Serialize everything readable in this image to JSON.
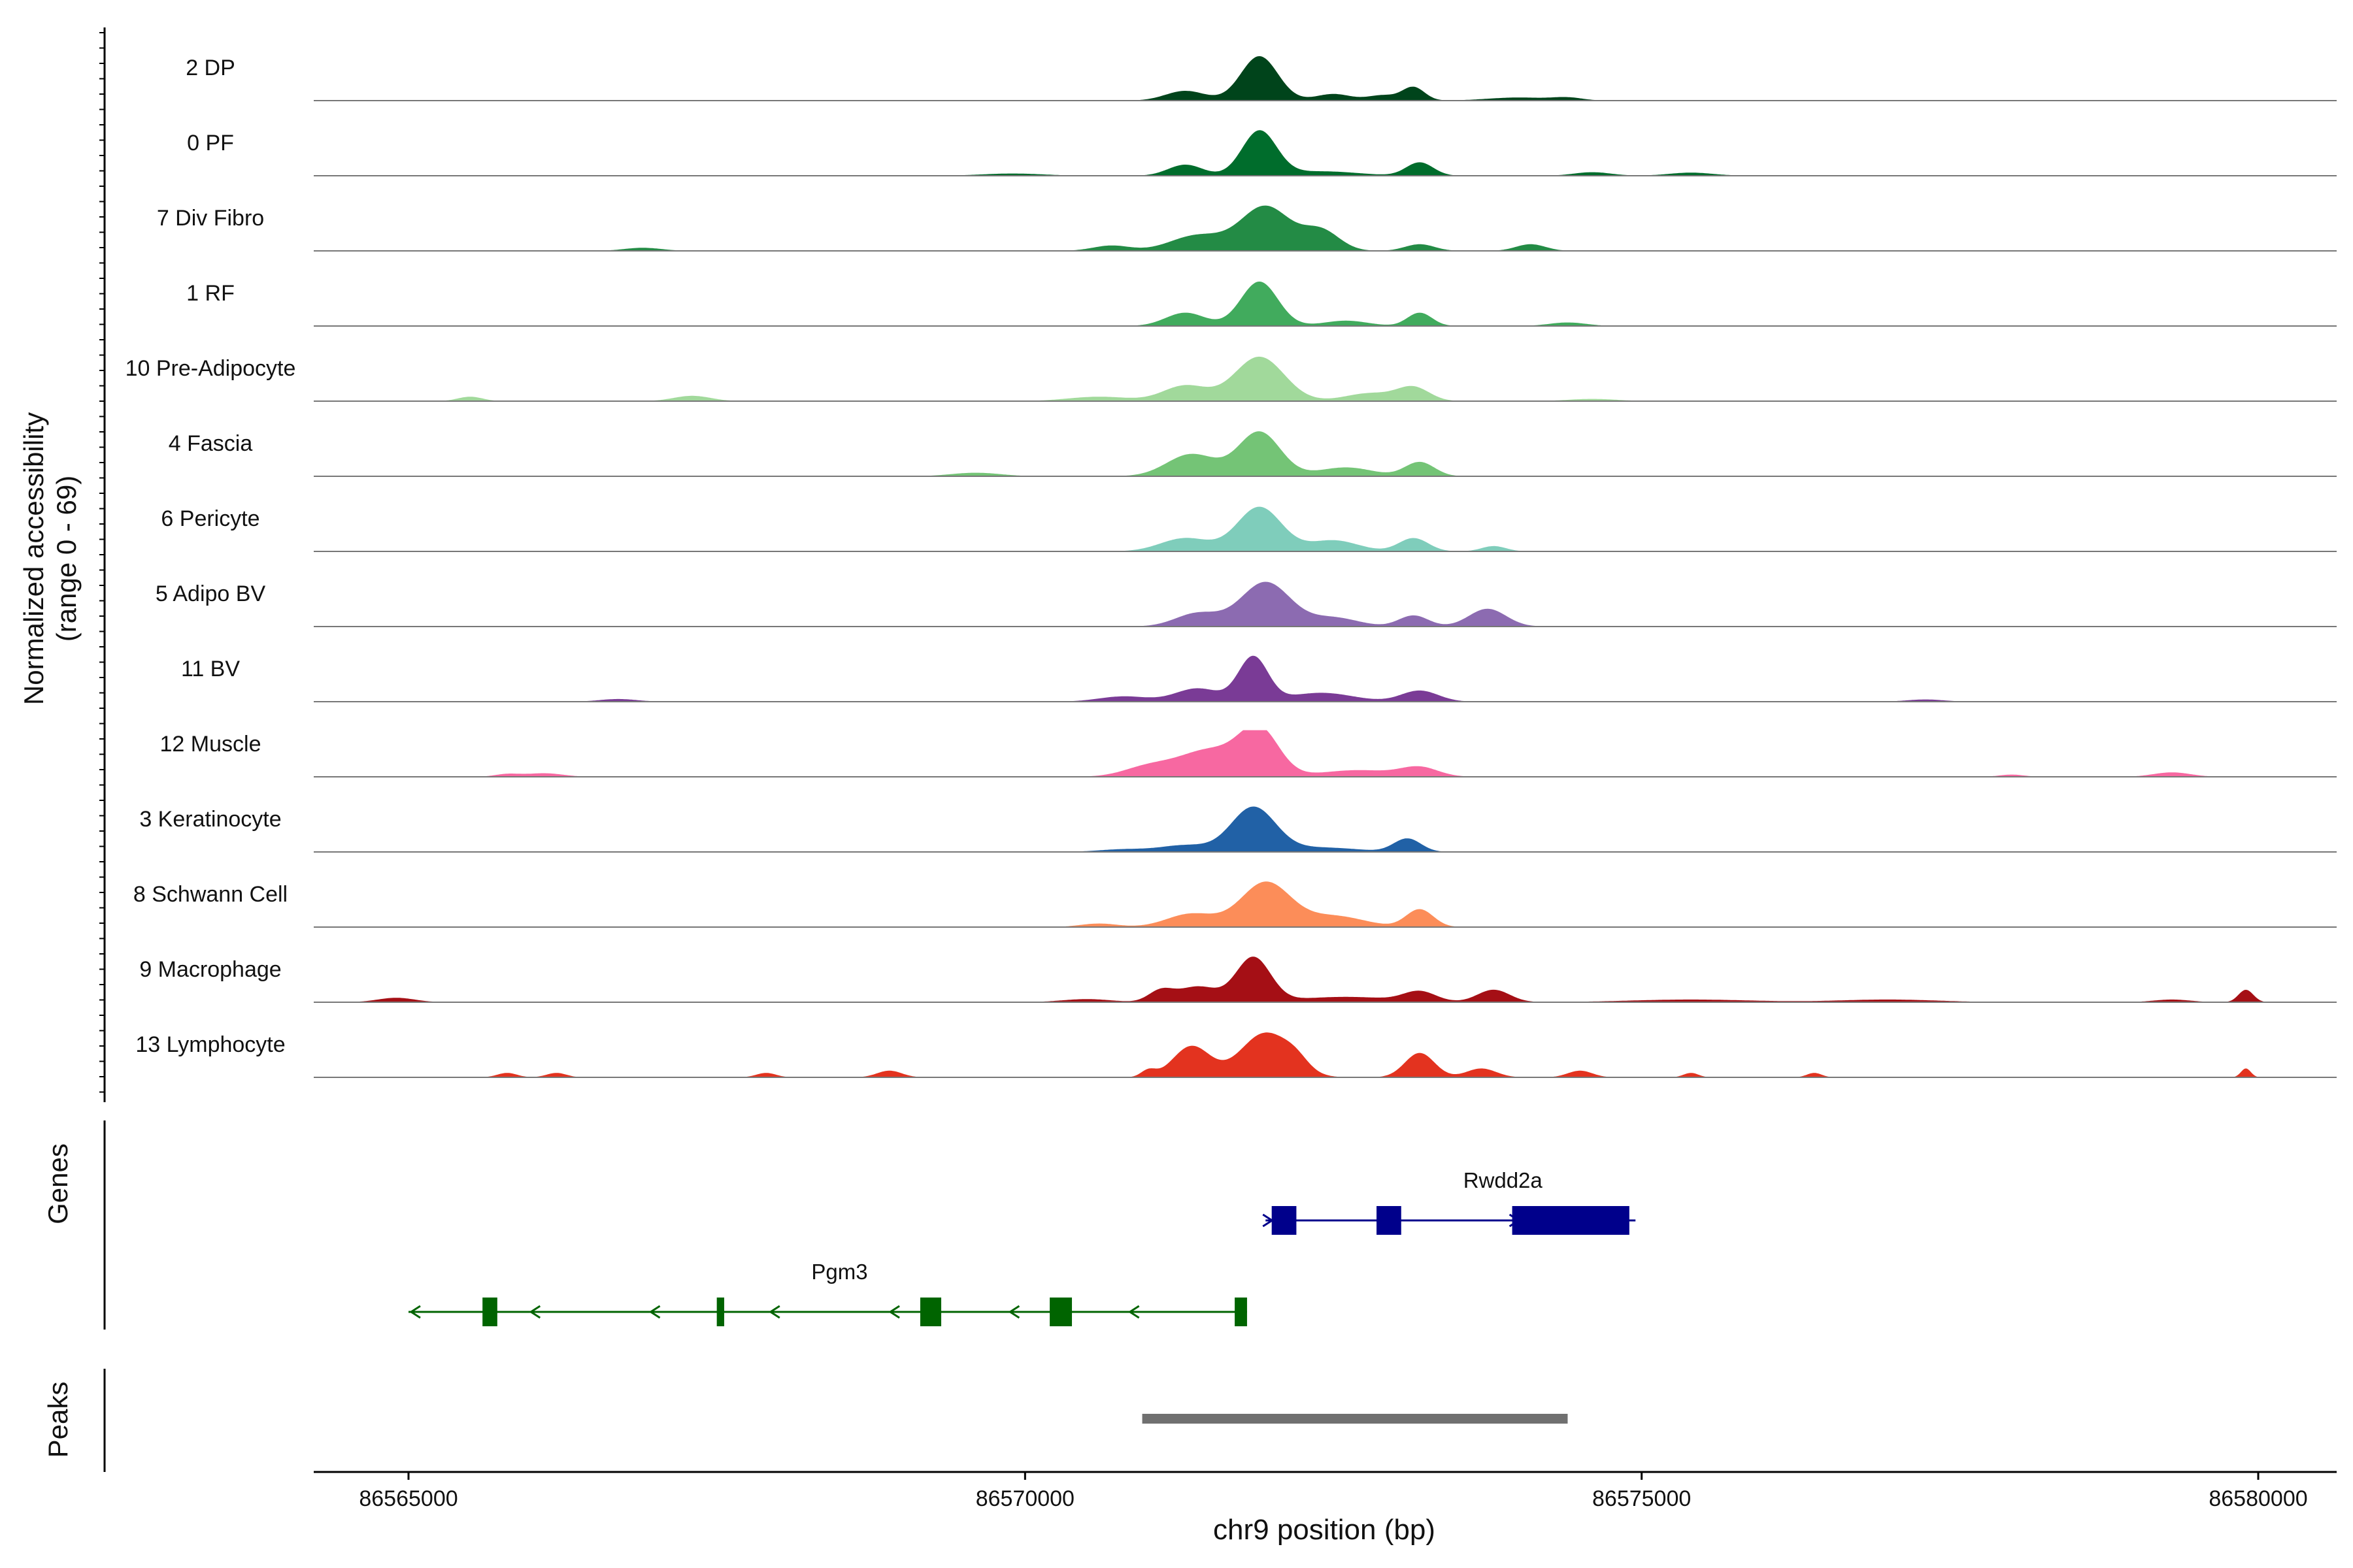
{
  "chart_data": {
    "type": "area",
    "title": "",
    "ylabel_line1": "Normalized accessibility",
    "ylabel_line2": "(range 0 - 69)",
    "y_range": [
      0,
      69
    ],
    "xlabel": "chr9 position (bp)",
    "x_range": [
      86563500,
      86580200
    ],
    "x_ticks": [
      86565000,
      86570000,
      86575000,
      86580000
    ],
    "x_tick_labels": [
      "86565000",
      "86570000",
      "86575000",
      "86580000"
    ],
    "tracks": [
      {
        "name": "2 DP",
        "color": "#00441b",
        "peaks": [
          [
            86571900,
            1.0,
            150
          ],
          [
            86571300,
            0.22,
            160
          ],
          [
            86572500,
            0.15,
            140
          ],
          [
            86573150,
            0.3,
            90
          ],
          [
            86572900,
            0.12,
            120
          ],
          [
            86574000,
            0.07,
            250
          ],
          [
            86574400,
            0.06,
            120
          ]
        ]
      },
      {
        "name": "0 PF",
        "color": "#006d2c",
        "peaks": [
          [
            86571900,
            1.0,
            140
          ],
          [
            86571300,
            0.25,
            140
          ],
          [
            86573200,
            0.3,
            110
          ],
          [
            86572400,
            0.1,
            300
          ],
          [
            86574600,
            0.08,
            150
          ],
          [
            86575400,
            0.07,
            180
          ],
          [
            86569900,
            0.05,
            250
          ]
        ]
      },
      {
        "name": "7 Div Fibro",
        "color": "#238b45",
        "peaks": [
          [
            86571950,
            1.0,
            200
          ],
          [
            86571400,
            0.35,
            220
          ],
          [
            86572400,
            0.45,
            150
          ],
          [
            86570700,
            0.12,
            150
          ],
          [
            86573200,
            0.15,
            120
          ],
          [
            86574100,
            0.15,
            120
          ],
          [
            86566900,
            0.07,
            150
          ]
        ]
      },
      {
        "name": "1 RF",
        "color": "#41ab5d",
        "peaks": [
          [
            86571900,
            1.0,
            150
          ],
          [
            86571300,
            0.3,
            160
          ],
          [
            86573200,
            0.3,
            100
          ],
          [
            86572600,
            0.12,
            180
          ],
          [
            86574400,
            0.08,
            150
          ]
        ]
      },
      {
        "name": "10 Pre-Adipocyte",
        "color": "#a1d99b",
        "peaks": [
          [
            86571900,
            1.0,
            200
          ],
          [
            86571300,
            0.35,
            180
          ],
          [
            86573150,
            0.3,
            130
          ],
          [
            86572800,
            0.18,
            200
          ],
          [
            86570600,
            0.1,
            250
          ],
          [
            86567300,
            0.12,
            150
          ],
          [
            86565500,
            0.1,
            100
          ],
          [
            86574600,
            0.05,
            200
          ]
        ]
      },
      {
        "name": "4 Fascia",
        "color": "#74c476",
        "peaks": [
          [
            86571900,
            1.0,
            170
          ],
          [
            86571350,
            0.5,
            200
          ],
          [
            86573200,
            0.32,
            120
          ],
          [
            86572600,
            0.2,
            220
          ],
          [
            86569600,
            0.08,
            200
          ]
        ]
      },
      {
        "name": "6 Pericyte",
        "color": "#7fcdbb",
        "peaks": [
          [
            86571900,
            1.0,
            180
          ],
          [
            86571300,
            0.3,
            200
          ],
          [
            86572500,
            0.25,
            200
          ],
          [
            86573150,
            0.3,
            120
          ],
          [
            86573800,
            0.12,
            100
          ]
        ]
      },
      {
        "name": "5 Adipo BV",
        "color": "#8c6bb1",
        "peaks": [
          [
            86571950,
            1.0,
            200
          ],
          [
            86571400,
            0.3,
            180
          ],
          [
            86572500,
            0.2,
            200
          ],
          [
            86573150,
            0.25,
            120
          ],
          [
            86573750,
            0.4,
            150
          ]
        ]
      },
      {
        "name": "11 BV",
        "color": "#7a3b96",
        "peaks": [
          [
            86571850,
            1.0,
            120
          ],
          [
            86571400,
            0.3,
            180
          ],
          [
            86572400,
            0.2,
            260
          ],
          [
            86573200,
            0.25,
            150
          ],
          [
            86570800,
            0.12,
            200
          ],
          [
            86566700,
            0.06,
            150
          ],
          [
            86577300,
            0.05,
            150
          ]
        ]
      },
      {
        "name": "12 Muscle",
        "color": "#f768a1",
        "peaks": [
          [
            86571900,
            1.0,
            160
          ],
          [
            86571500,
            0.6,
            250
          ],
          [
            86571000,
            0.22,
            200
          ],
          [
            86572700,
            0.15,
            300
          ],
          [
            86573200,
            0.2,
            150
          ],
          [
            86566100,
            0.08,
            150
          ],
          [
            86565800,
            0.06,
            100
          ],
          [
            86579300,
            0.1,
            150
          ],
          [
            86578000,
            0.05,
            100
          ]
        ]
      },
      {
        "name": "3 Keratinocyte",
        "color": "#2161a6",
        "peaks": [
          [
            86571850,
            1.0,
            180
          ],
          [
            86571300,
            0.15,
            200
          ],
          [
            86573100,
            0.3,
            110
          ],
          [
            86572400,
            0.1,
            300
          ],
          [
            86570800,
            0.06,
            200
          ]
        ]
      },
      {
        "name": "8 Schwann Cell",
        "color": "#fc8d59",
        "peaks": [
          [
            86571950,
            1.0,
            200
          ],
          [
            86571350,
            0.3,
            200
          ],
          [
            86572500,
            0.25,
            250
          ],
          [
            86573200,
            0.4,
            110
          ],
          [
            86570600,
            0.08,
            150
          ]
        ]
      },
      {
        "name": "9 Macrophage",
        "color": "#a50f15",
        "peaks": [
          [
            86571850,
            1.0,
            140
          ],
          [
            86571400,
            0.35,
            160
          ],
          [
            86571100,
            0.25,
            100
          ],
          [
            86573200,
            0.22,
            130
          ],
          [
            86573800,
            0.28,
            130
          ],
          [
            86572600,
            0.12,
            400
          ],
          [
            86579900,
            0.28,
            60
          ],
          [
            86564900,
            0.1,
            150
          ],
          [
            86570500,
            0.07,
            200
          ],
          [
            86575400,
            0.06,
            500
          ],
          [
            86577000,
            0.06,
            400
          ],
          [
            86579300,
            0.06,
            150
          ]
        ]
      },
      {
        "name": "13 Lymphocyte",
        "color": "#e3331f",
        "peaks": [
          [
            86571950,
            1.0,
            200
          ],
          [
            86571350,
            0.7,
            150
          ],
          [
            86573200,
            0.55,
            120
          ],
          [
            86572200,
            0.2,
            100
          ],
          [
            86573700,
            0.2,
            120
          ],
          [
            86574500,
            0.15,
            100
          ],
          [
            86571000,
            0.15,
            60
          ],
          [
            86568900,
            0.15,
            100
          ],
          [
            86566200,
            0.1,
            80
          ],
          [
            86565800,
            0.1,
            80
          ],
          [
            86567900,
            0.1,
            80
          ],
          [
            86579900,
            0.2,
            40
          ],
          [
            86575400,
            0.1,
            60
          ],
          [
            86576400,
            0.1,
            60
          ]
        ]
      }
    ],
    "genes": [
      {
        "name": "Rwdd2a",
        "color": "#00008b",
        "strand": "+",
        "start": 86571950,
        "end": 86574950,
        "exons": [
          [
            86572000,
            86572200
          ],
          [
            86572850,
            86573050
          ],
          [
            86573950,
            86574900
          ]
        ]
      },
      {
        "name": "Pgm3",
        "color": "#006400",
        "strand": "-",
        "start": 86565000,
        "end": 86571800,
        "exons": [
          [
            86565600,
            86565720
          ],
          [
            86567500,
            86567560
          ],
          [
            86569150,
            86569320
          ],
          [
            86570200,
            86570380
          ],
          [
            86571700,
            86571800
          ]
        ]
      }
    ],
    "genes_label": "Genes",
    "peaks_label": "Peaks",
    "peak_regions": [
      [
        86570950,
        86574400
      ]
    ]
  }
}
